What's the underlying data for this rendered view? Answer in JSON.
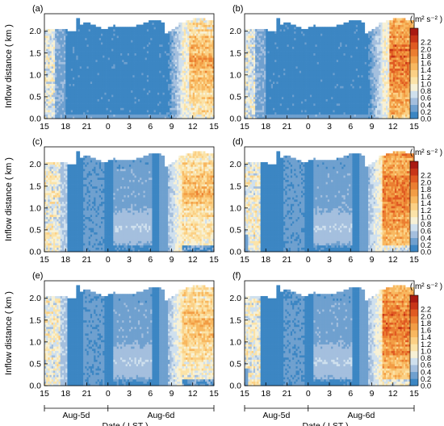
{
  "chart_data": [
    {
      "type": "heatmap",
      "panel_label": "(a)",
      "pattern": "a",
      "xlabel": "",
      "ylabel": "Inflow distance ( km )",
      "ylim": [
        0,
        2.4
      ],
      "x_ticks": [
        "15",
        "18",
        "21",
        "0",
        "3",
        "6",
        "9",
        "12",
        "15"
      ],
      "y_ticks": [
        "0.0",
        "0.5",
        "1.0",
        "1.5",
        "2.0"
      ]
    },
    {
      "type": "heatmap",
      "panel_label": "(b)",
      "pattern": "b",
      "xlabel": "",
      "ylabel": "",
      "ylim": [
        0,
        2.4
      ],
      "x_ticks": [
        "15",
        "18",
        "21",
        "0",
        "3",
        "6",
        "9",
        "12",
        "15"
      ],
      "y_ticks": [
        "0.0",
        "0.5",
        "1.0",
        "1.5",
        "2.0"
      ]
    },
    {
      "type": "heatmap",
      "panel_label": "(c)",
      "pattern": "c",
      "xlabel": "",
      "ylabel": "Inflow distance ( km )",
      "ylim": [
        0,
        2.4
      ],
      "x_ticks": [
        "15",
        "18",
        "21",
        "0",
        "3",
        "6",
        "9",
        "12",
        "15"
      ],
      "y_ticks": [
        "0.0",
        "0.5",
        "1.0",
        "1.5",
        "2.0"
      ]
    },
    {
      "type": "heatmap",
      "panel_label": "(d)",
      "pattern": "d",
      "xlabel": "",
      "ylabel": "",
      "ylim": [
        0,
        2.4
      ],
      "x_ticks": [
        "15",
        "18",
        "21",
        "0",
        "3",
        "6",
        "9",
        "12",
        "15"
      ],
      "y_ticks": [
        "0.0",
        "0.5",
        "1.0",
        "1.5",
        "2.0"
      ]
    },
    {
      "type": "heatmap",
      "panel_label": "(e)",
      "pattern": "c",
      "xlabel": "Date ( LST )",
      "ylabel": "Inflow distance ( km )",
      "ylim": [
        0,
        2.4
      ],
      "x_ticks": [
        "15",
        "18",
        "21",
        "0",
        "3",
        "6",
        "9",
        "12",
        "15"
      ],
      "y_ticks": [
        "0.0",
        "0.5",
        "1.0",
        "1.5",
        "2.0"
      ],
      "date_labels": [
        "Aug-5d",
        "Aug-6d"
      ]
    },
    {
      "type": "heatmap",
      "panel_label": "(f)",
      "pattern": "d",
      "xlabel": "Date ( LST )",
      "ylabel": "",
      "ylim": [
        0,
        2.4
      ],
      "x_ticks": [
        "15",
        "18",
        "21",
        "0",
        "3",
        "6",
        "9",
        "12",
        "15"
      ],
      "y_ticks": [
        "0.0",
        "0.5",
        "1.0",
        "1.5",
        "2.0"
      ],
      "date_labels": [
        "Aug-5d",
        "Aug-6d"
      ]
    }
  ],
  "colorbar": {
    "unit_label": "( m² s⁻² )",
    "ticks": [
      "2.2",
      "2.0",
      "1.8",
      "1.6",
      "1.4",
      "1.2",
      "1.0",
      "0.8",
      "0.6",
      "0.4",
      "0.2",
      "0.0"
    ],
    "colors": [
      "#3c86c3",
      "#6fa0cf",
      "#a4bfde",
      "#cfe0ee",
      "#f7f1d6",
      "#fbe3a8",
      "#fbd085",
      "#f8b860",
      "#f29d45",
      "#eb7e31",
      "#e05a22",
      "#c83518",
      "#a91a12"
    ]
  }
}
